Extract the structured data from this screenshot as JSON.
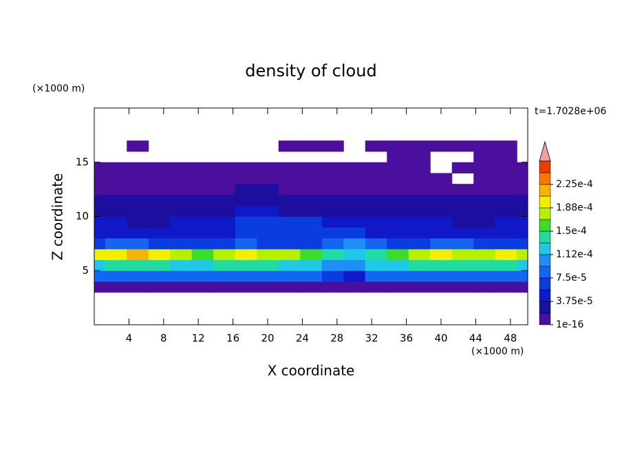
{
  "chart_data": {
    "type": "contour",
    "title": "density of cloud",
    "time_label": "t=1.7028e+06",
    "x_label": "X coordinate",
    "y_label": "Z coordinate",
    "x_unit": "(×1000 m)",
    "y_unit": "(×1000 m)",
    "xlim": [
      0,
      50
    ],
    "ylim": [
      0,
      20
    ],
    "xticks": [
      4,
      8,
      12,
      16,
      20,
      24,
      28,
      32,
      36,
      40,
      44,
      48
    ],
    "yticks": [
      5,
      10,
      15
    ],
    "x": [
      0,
      2.5,
      5,
      7.5,
      10,
      12.5,
      15,
      17.5,
      20,
      22.5,
      25,
      27.5,
      30,
      32.5,
      35,
      37.5,
      40,
      42.5,
      45,
      47.5,
      50
    ],
    "y": [
      3.5,
      4.5,
      5.5,
      6.5,
      7.5,
      8.5,
      9.5,
      10.5,
      11.5,
      12.5,
      13.5,
      14.5,
      15.5,
      16.5
    ],
    "values": [
      [
        1e-05,
        1e-05,
        1e-05,
        1e-05,
        1e-05,
        1e-05,
        1e-05,
        1e-05,
        1e-05,
        1e-05,
        1e-05,
        1e-05,
        1e-05,
        1e-05,
        1e-05,
        1e-05,
        1e-05,
        1e-05,
        1e-05,
        1e-05,
        1e-05
      ],
      [
        8e-05,
        8.5e-05,
        9e-05,
        8.5e-05,
        8e-05,
        8e-05,
        8.5e-05,
        9e-05,
        8.5e-05,
        8e-05,
        8e-05,
        6e-05,
        5e-05,
        8e-05,
        8.5e-05,
        9e-05,
        9e-05,
        8.5e-05,
        8e-05,
        8.5e-05,
        8e-05
      ],
      [
        0.00013,
        0.00014,
        0.00014,
        0.000135,
        0.00013,
        0.00012,
        0.000135,
        0.00014,
        0.000135,
        0.00013,
        0.000125,
        0.00011,
        0.0001,
        0.00012,
        0.00013,
        0.00014,
        0.000145,
        0.00014,
        0.000135,
        0.00014,
        0.00013
      ],
      [
        0.00019,
        0.0002,
        0.00021,
        0.0002,
        0.00018,
        0.00015,
        0.00018,
        0.00019,
        0.00018,
        0.00017,
        0.00016,
        0.00014,
        0.00013,
        0.00014,
        0.00016,
        0.00018,
        0.00019,
        0.00018,
        0.00018,
        0.00019,
        0.00017
      ],
      [
        7e-05,
        8e-05,
        8e-05,
        7e-05,
        7e-05,
        6e-05,
        7e-05,
        8e-05,
        7e-05,
        7e-05,
        7e-05,
        9e-05,
        0.0001,
        8e-05,
        7e-05,
        7e-05,
        8e-05,
        8e-05,
        7e-05,
        7e-05,
        7e-05
      ],
      [
        5e-05,
        5e-05,
        5e-05,
        5e-05,
        4.5e-05,
        5e-05,
        5.5e-05,
        6e-05,
        6e-05,
        6e-05,
        6e-05,
        6.5e-05,
        6e-05,
        5.5e-05,
        5e-05,
        5e-05,
        4.5e-05,
        4.5e-05,
        5e-05,
        5e-05,
        5e-05
      ],
      [
        4e-05,
        4e-05,
        3.5e-05,
        3.5e-05,
        4e-05,
        4.5e-05,
        5e-05,
        6e-05,
        6.5e-05,
        6e-05,
        6e-05,
        5.5e-05,
        5e-05,
        5e-05,
        4.5e-05,
        4e-05,
        4e-05,
        3.5e-05,
        3.5e-05,
        4e-05,
        4e-05
      ],
      [
        3e-05,
        3e-05,
        3e-05,
        2.5e-05,
        3e-05,
        3e-05,
        3.5e-05,
        4e-05,
        4e-05,
        3.5e-05,
        3.5e-05,
        3e-05,
        3e-05,
        3e-05,
        3e-05,
        3e-05,
        2.5e-05,
        3e-05,
        3e-05,
        3e-05,
        3e-05
      ],
      [
        2.5e-05,
        2.5e-05,
        2e-05,
        2e-05,
        2.5e-05,
        2.5e-05,
        2.5e-05,
        3e-05,
        3e-05,
        2.5e-05,
        2.5e-05,
        2.5e-05,
        2e-05,
        2.5e-05,
        2.5e-05,
        2e-05,
        2e-05,
        2e-05,
        2.5e-05,
        2.5e-05,
        2.5e-05
      ],
      [
        1.5e-05,
        1.5e-05,
        1.5e-05,
        1.5e-05,
        1.5e-05,
        1.5e-05,
        1.5e-05,
        2e-05,
        2e-05,
        1.5e-05,
        1.5e-05,
        1.5e-05,
        1.5e-05,
        1.5e-05,
        1.5e-05,
        1.5e-05,
        1.5e-05,
        1.5e-05,
        1.5e-05,
        1.5e-05,
        1.5e-05
      ],
      [
        8e-06,
        8e-06,
        8e-06,
        8e-06,
        8e-06,
        8e-06,
        8e-06,
        8e-06,
        8e-06,
        8e-06,
        8e-06,
        8e-06,
        8e-06,
        8e-06,
        8e-06,
        8e-06,
        8e-06,
        null,
        8e-06,
        8e-06,
        8e-06
      ],
      [
        5e-06,
        5e-06,
        5e-06,
        5e-06,
        5e-06,
        5e-06,
        5e-06,
        5e-06,
        5e-06,
        5e-06,
        5e-06,
        5e-06,
        5e-06,
        5e-06,
        5e-06,
        5e-06,
        null,
        5e-06,
        5e-06,
        5e-06,
        5e-06
      ],
      [
        null,
        null,
        null,
        null,
        null,
        null,
        null,
        null,
        null,
        null,
        null,
        null,
        null,
        null,
        5e-06,
        5e-06,
        null,
        null,
        5e-06,
        5e-06,
        null
      ],
      [
        null,
        null,
        5e-06,
        null,
        null,
        null,
        null,
        null,
        null,
        5e-06,
        5e-06,
        5e-06,
        null,
        5e-06,
        5e-06,
        5e-06,
        5e-06,
        5e-06,
        5e-06,
        5e-06,
        null
      ]
    ],
    "levels": [
      1e-16,
      1.875e-05,
      3.75e-05,
      5.625e-05,
      7.5e-05,
      9.375e-05,
      0.0001125,
      0.00013125,
      0.00015,
      0.00016875,
      0.0001875,
      0.00020625,
      0.000225,
      0.00024375,
      0.0002625
    ],
    "colors": [
      "#4b0f9e",
      "#1c0fa0",
      "#0f19c8",
      "#0a3de0",
      "#1466f0",
      "#1e90f5",
      "#1ec8e6",
      "#20dca0",
      "#3cdc28",
      "#b4f000",
      "#f0f000",
      "#f5b400",
      "#f57800",
      "#f03c00"
    ],
    "over_color": "#f0a0a0",
    "colorbar_ticks": [
      1e-16,
      {
        "value": 3.75e-05,
        "label": "3.75e-5"
      },
      {
        "value": 7.5e-05,
        "label": "7.5e-5"
      },
      {
        "value": 0.0001125,
        "label": "1.12e-4"
      },
      {
        "value": 0.00015,
        "label": "1.5e-4"
      },
      {
        "value": 0.0001875,
        "label": "1.88e-4"
      },
      {
        "value": 0.000225,
        "label": "2.25e-4"
      }
    ]
  }
}
